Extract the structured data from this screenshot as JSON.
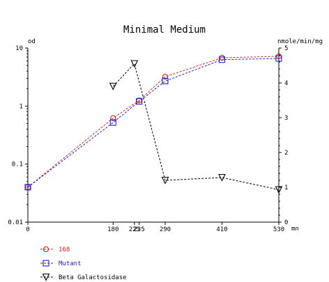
{
  "chart_data": {
    "type": "line",
    "title": "Minimal Medium",
    "x_unit": "mn",
    "x_ticks": [
      0,
      180,
      225,
      235,
      290,
      410,
      530
    ],
    "xlim": [
      0,
      530
    ],
    "y_left": {
      "label": "od",
      "scale": "log",
      "ylim": [
        0.01,
        10
      ],
      "ticks": [
        0.01,
        0.1,
        1,
        10
      ],
      "tick_labels": [
        "0.01",
        "0.1",
        "1",
        "10"
      ]
    },
    "y_right": {
      "label": "nmole/min/mg",
      "scale": "linear",
      "ylim": [
        0,
        5
      ],
      "ticks": [
        0,
        1,
        2,
        3,
        4,
        5
      ],
      "tick_labels": [
        "0",
        "1",
        "2",
        "3",
        "4",
        "5"
      ]
    },
    "grid": false,
    "legend_position": "bottom-left",
    "series": [
      {
        "name": "168",
        "axis": "left",
        "color": "#d62020",
        "marker": "circle",
        "line": "dashed",
        "x": [
          0,
          180,
          235,
          290,
          410,
          530
        ],
        "y": [
          0.04,
          0.62,
          1.25,
          3.2,
          6.8,
          7.2
        ]
      },
      {
        "name": "Mutant",
        "axis": "left",
        "color": "#2020d6",
        "marker": "square",
        "line": "dashed",
        "x": [
          0,
          180,
          235,
          290,
          410,
          530
        ],
        "y": [
          0.04,
          0.52,
          1.2,
          2.7,
          6.3,
          6.6
        ]
      },
      {
        "name": "Beta Galactosidase",
        "axis": "right",
        "color": "#000000",
        "marker": "triangle-down",
        "line": "dashed",
        "x": [
          180,
          225,
          290,
          410,
          530
        ],
        "y": [
          3.9,
          4.55,
          1.2,
          1.28,
          0.93
        ]
      }
    ]
  }
}
